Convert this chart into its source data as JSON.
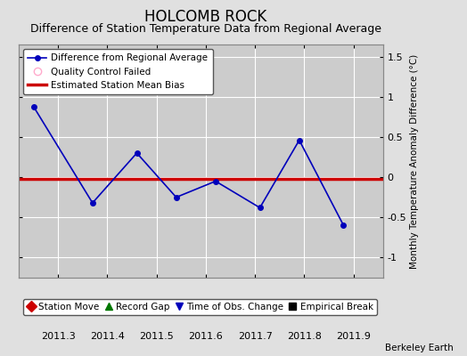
{
  "title": "HOLCOMB ROCK",
  "subtitle": "Difference of Station Temperature Data from Regional Average",
  "ylabel_right": "Monthly Temperature Anomaly Difference (°C)",
  "watermark": "Berkeley Earth",
  "x_values": [
    2011.25,
    2011.37,
    2011.46,
    2011.54,
    2011.62,
    2011.71,
    2011.79,
    2011.88
  ],
  "y_values": [
    0.88,
    -0.32,
    0.3,
    -0.25,
    -0.05,
    -0.38,
    0.46,
    -0.6
  ],
  "bias_line_y": -0.02,
  "xlim": [
    2011.22,
    2011.96
  ],
  "ylim": [
    -1.25,
    1.65
  ],
  "yticks": [
    -1.0,
    -0.5,
    0.0,
    0.5,
    1.0,
    1.5
  ],
  "xticks": [
    2011.3,
    2011.4,
    2011.5,
    2011.6,
    2011.7,
    2011.8,
    2011.9
  ],
  "xtick_labels": [
    "2011.3",
    "2011.4",
    "2011.5",
    "2011.6",
    "2011.7",
    "2011.8",
    "2011.9"
  ],
  "line_color": "#0000bb",
  "marker_color": "#0000bb",
  "bias_color": "#cc0000",
  "background_color": "#e0e0e0",
  "plot_bg_color": "#cccccc",
  "grid_color": "#ffffff",
  "legend1_entries": [
    {
      "label": "Difference from Regional Average",
      "color": "#0000bb",
      "type": "line_marker"
    },
    {
      "label": "Quality Control Failed",
      "color": "#ffaacc",
      "type": "circle_open"
    },
    {
      "label": "Estimated Station Mean Bias",
      "color": "#cc0000",
      "type": "line"
    }
  ],
  "legend2_entries": [
    {
      "label": "Station Move",
      "color": "#cc0000",
      "marker": "D"
    },
    {
      "label": "Record Gap",
      "color": "#007700",
      "marker": "^"
    },
    {
      "label": "Time of Obs. Change",
      "color": "#0000bb",
      "marker": "v"
    },
    {
      "label": "Empirical Break",
      "color": "#000000",
      "marker": "s"
    }
  ],
  "title_fontsize": 12,
  "subtitle_fontsize": 9,
  "axis_fontsize": 7.5,
  "tick_fontsize": 8,
  "legend_fontsize": 7.5
}
